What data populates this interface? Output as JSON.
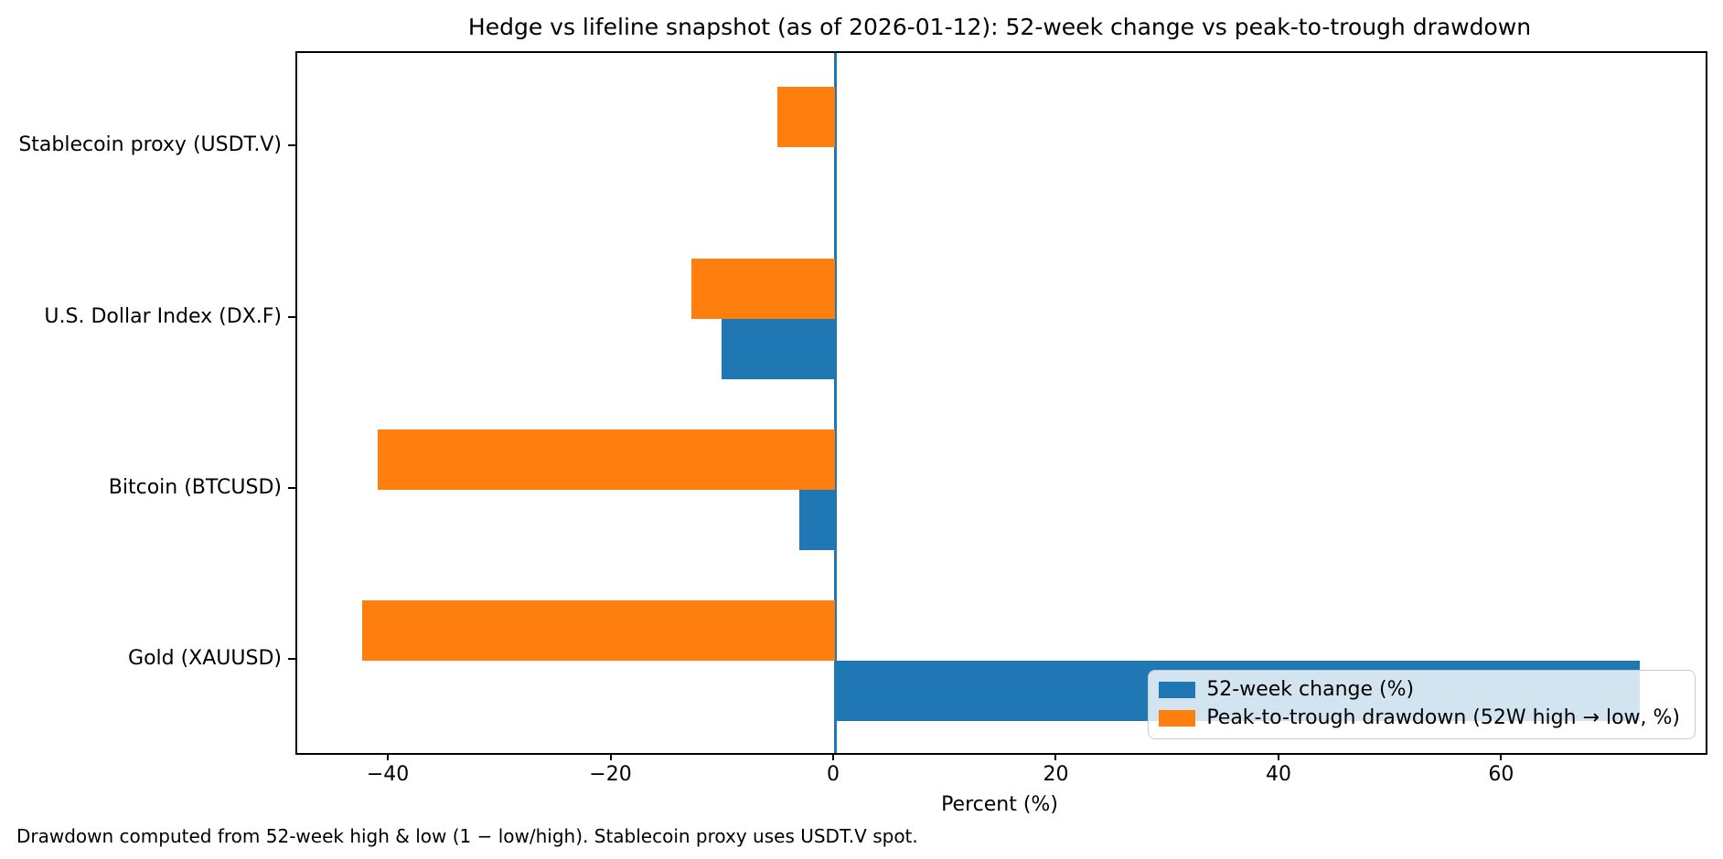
{
  "chart_data": {
    "type": "bar",
    "orientation": "horizontal",
    "title": "Hedge vs lifeline snapshot (as of 2026-01-12): 52-week change vs peak-to-trough drawdown",
    "xlabel": "Percent (%)",
    "categories": [
      "Stablecoin proxy (USDT.V)",
      "U.S. Dollar Index (DX.F)",
      "Bitcoin (BTCUSD)",
      "Gold (XAUUSD)"
    ],
    "series": [
      {
        "name": "52-week change (%)",
        "color": "#1f77b4",
        "values": [
          0.0,
          -10.2,
          -3.2,
          72.3
        ]
      },
      {
        "name": "Peak-to-trough drawdown (52W high → low, %)",
        "color": "#ff7f0e",
        "values": [
          -5.2,
          -12.9,
          -41.1,
          -42.5
        ]
      }
    ],
    "xlim": [
      -48.3,
      78.2
    ],
    "xticks": [
      -40,
      -20,
      0,
      20,
      40,
      60
    ],
    "xtick_labels": [
      "−40",
      "−20",
      "0",
      "20",
      "40",
      "60"
    ],
    "zero_line": {
      "x": 0,
      "color": "#1f77b4"
    },
    "legend_position": "lower right",
    "grid": false,
    "frame_color": "#000000"
  },
  "footnote": "Drawdown computed from 52-week high & low (1 − low/high). Stablecoin proxy uses USDT.V spot."
}
